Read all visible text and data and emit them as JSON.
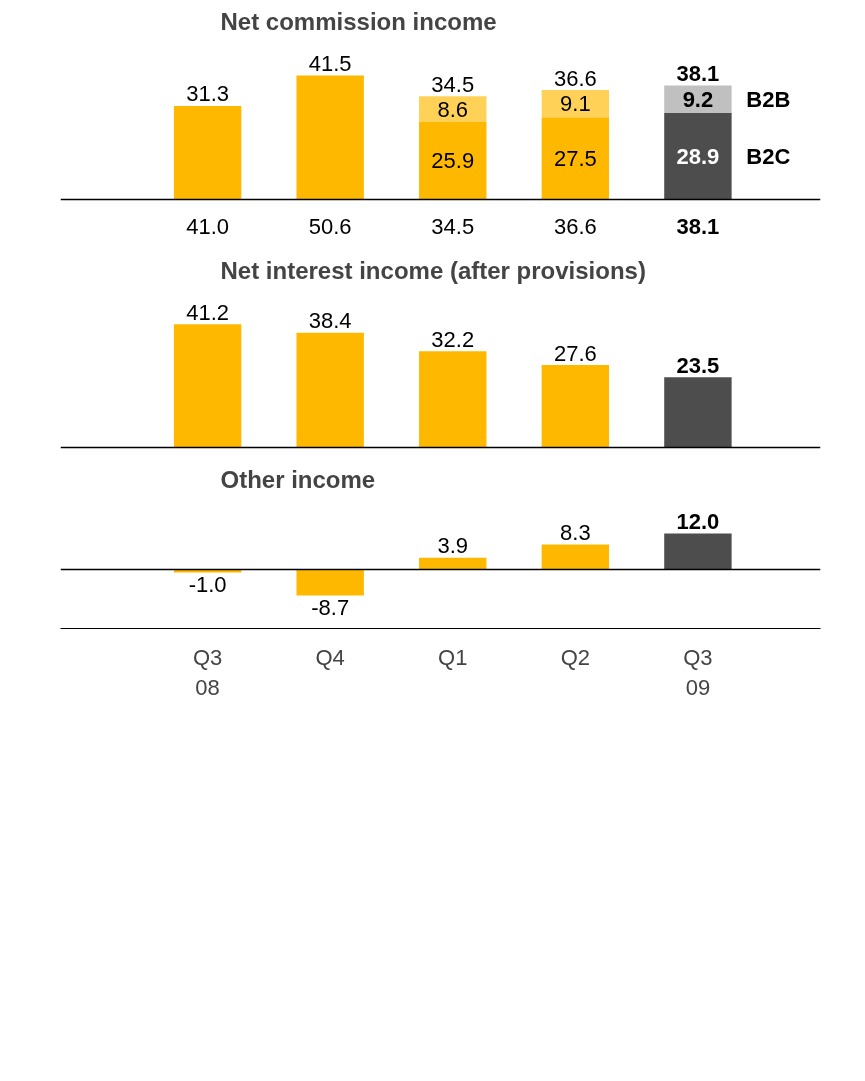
{
  "chart_data": [
    {
      "type": "bar",
      "title": "Net commission income",
      "categories": [
        null,
        null,
        null,
        null,
        null
      ],
      "stacked": true,
      "tick_labels": false,
      "series": [
        {
          "name": "B2C",
          "colors": [
            "#ffb800",
            "#ffb800",
            "#ffb800",
            "#ffb800",
            "#4d4d4d"
          ],
          "values": [
            31.3,
            41.5,
            25.9,
            27.5,
            28.9
          ],
          "value_labels": [
            null,
            null,
            "25.9",
            "27.5",
            "28.9"
          ]
        },
        {
          "name": "B2B",
          "colors": [
            "#ffd257",
            "#ffd257",
            "#ffd257",
            "#ffd257",
            "#c0c0c0"
          ],
          "values": [
            null,
            null,
            8.6,
            9.1,
            9.2
          ],
          "value_labels": [
            null,
            null,
            "8.6",
            "9.1",
            "9.2"
          ]
        }
      ],
      "totals": [
        "31.3",
        "41.5",
        "34.5",
        "36.6",
        "38.1"
      ],
      "annotations": [
        "41.0",
        "50.6",
        "34.5",
        "36.6",
        "38.1"
      ]
    },
    {
      "type": "bar",
      "title": "Net interest income (after provisions)",
      "categories": [
        null,
        null,
        null,
        null,
        null
      ],
      "tick_labels": false,
      "values": [
        41.2,
        38.4,
        32.2,
        27.6,
        23.5
      ],
      "colors": [
        "#ffb800",
        "#ffb800",
        "#ffb800",
        "#ffb800",
        "#4d4d4d"
      ],
      "value_labels": [
        "41.2",
        "38.4",
        "32.2",
        "27.6",
        "23.5"
      ]
    },
    {
      "type": "bar",
      "title": "Other income",
      "categories": [
        "Q3\n08",
        "Q4",
        "Q1",
        "Q2",
        "Q3\n09"
      ],
      "tick_labels": "x",
      "values": [
        -1.0,
        -8.7,
        3.9,
        8.3,
        12.0
      ],
      "colors": [
        "#ffb800",
        "#ffb800",
        "#ffb800",
        "#ffb800",
        "#4d4d4d"
      ],
      "value_labels": [
        "-1.0",
        "-8.7",
        "3.9",
        "8.3",
        "12.0"
      ]
    }
  ]
}
